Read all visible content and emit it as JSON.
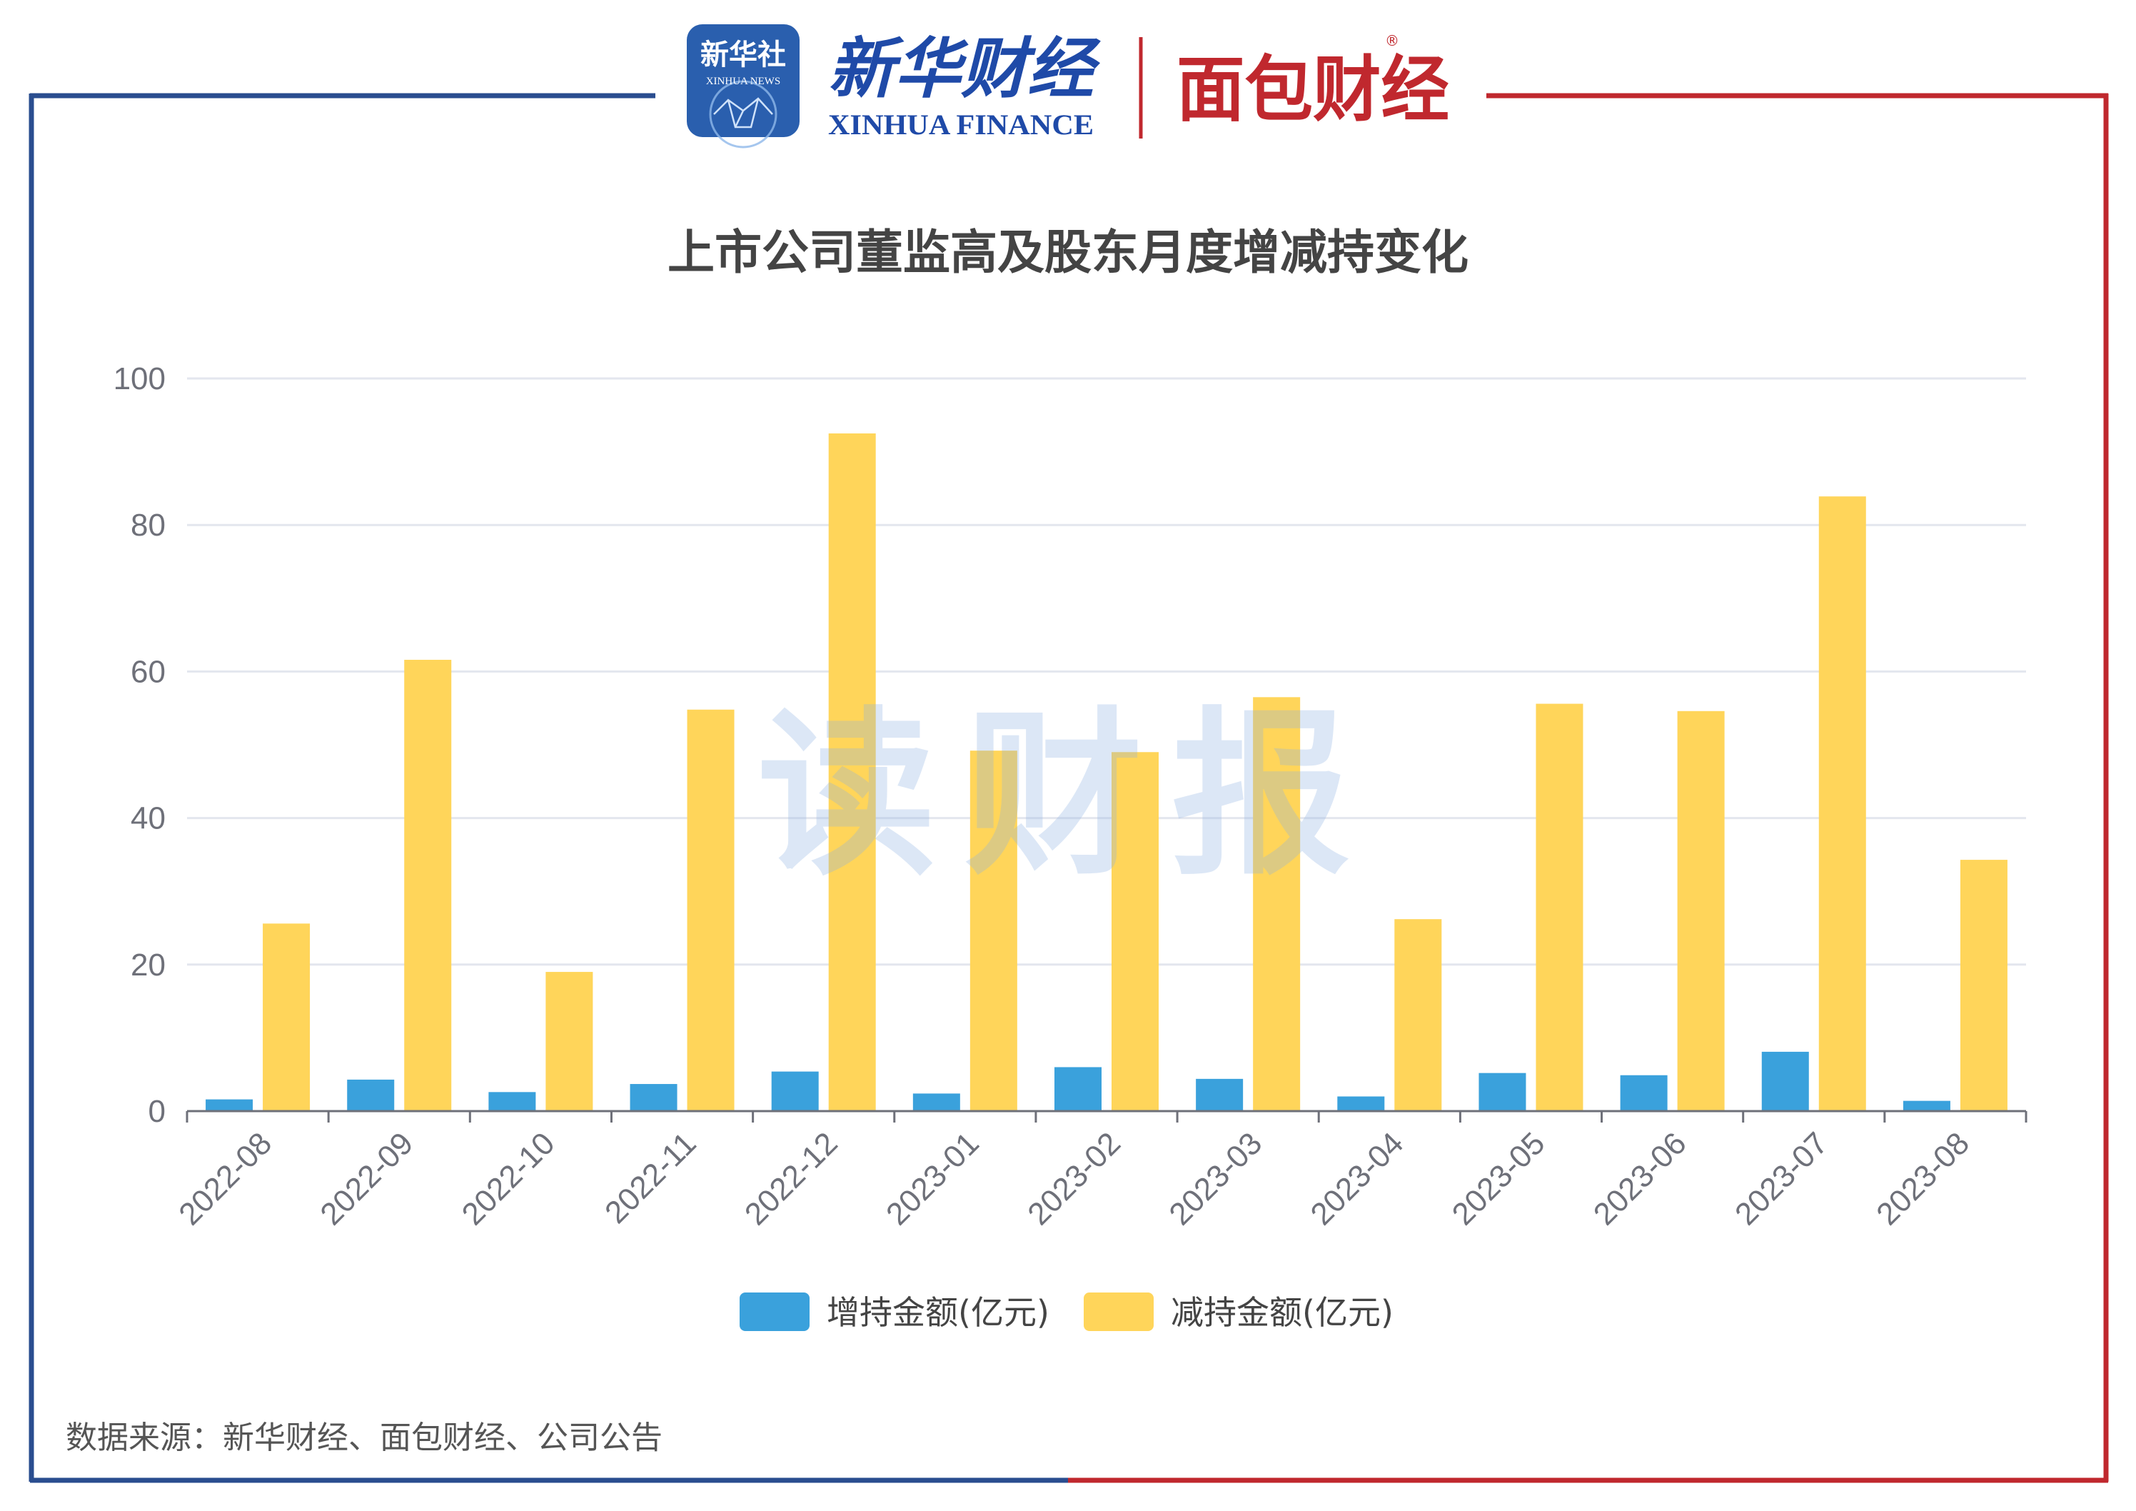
{
  "header": {
    "xinhua_badge": "新华社",
    "xinhua_badge_sub": "XINHUA NEWS",
    "xinhua_finance_cn": "新华财经",
    "xinhua_finance_en": "XINHUA FINANCE",
    "mianbao_logo": "面包财经",
    "registered_mark": "®"
  },
  "watermark": "读财报",
  "source_note": "数据来源：新华财经、面包财经、公司公告",
  "colors": {
    "frame_left": "#2a4d8f",
    "frame_right": "#c0282e",
    "increase": "#3aa1dc",
    "decrease": "#ffd55a",
    "grid": "#e3e6ee",
    "axis": "#6e7079"
  },
  "chart_data": {
    "type": "bar",
    "title": "上市公司董监高及股东月度增减持变化",
    "xlabel": "",
    "ylabel": "",
    "ylim": [
      0,
      100
    ],
    "yticks": [
      "0",
      "20",
      "40",
      "60",
      "80",
      "100"
    ],
    "grid": true,
    "legend": "bottom",
    "categories": [
      "2022-08",
      "2022-09",
      "2022-10",
      "2022-11",
      "2022-12",
      "2023-01",
      "2023-02",
      "2023-03",
      "2023-04",
      "2023-05",
      "2023-06",
      "2023-07",
      "2023-08"
    ],
    "series": [
      {
        "name": "增持金额(亿元)",
        "values": [
          1.6,
          4.3,
          2.6,
          3.7,
          5.4,
          2.4,
          6.0,
          4.4,
          2.0,
          5.2,
          4.9,
          8.1,
          1.4
        ]
      },
      {
        "name": "减持金额(亿元)",
        "values": [
          25.6,
          61.6,
          19.0,
          54.8,
          92.5,
          49.2,
          49.0,
          56.5,
          26.2,
          55.6,
          54.6,
          83.9,
          34.3
        ]
      }
    ]
  }
}
